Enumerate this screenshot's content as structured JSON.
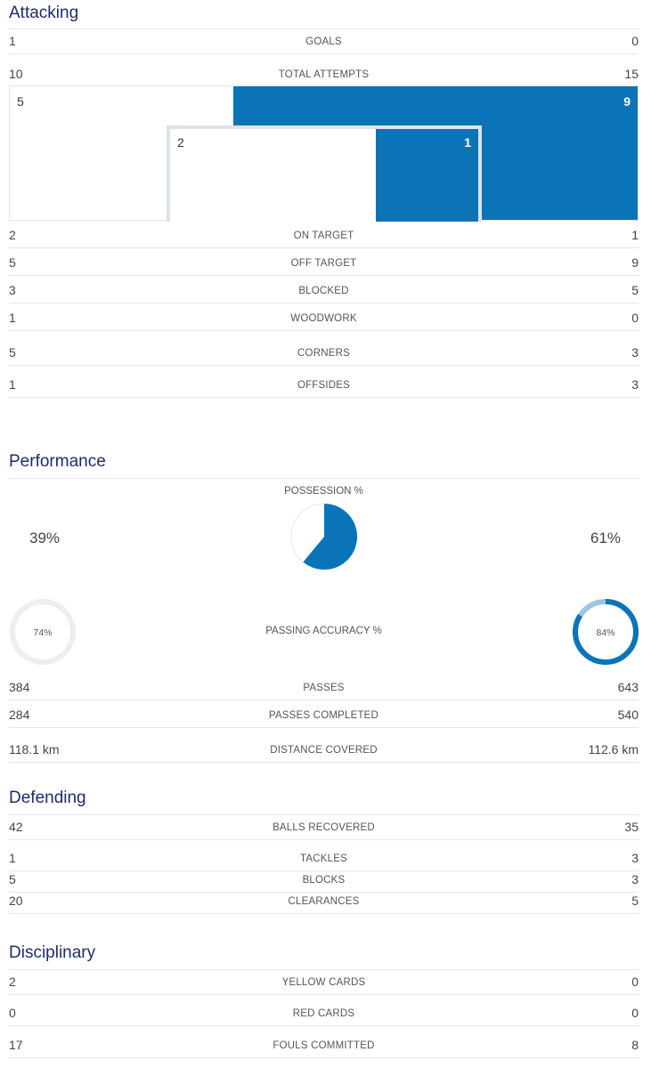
{
  "colors": {
    "title": "#1f2c6b",
    "accent": "#0b74b8",
    "accent_light": "#9fc4e2",
    "ring_track": "#eeeeee"
  },
  "attacking": {
    "title": "Attacking",
    "goals": {
      "label": "GOALS",
      "home": "1",
      "away": "0"
    },
    "total_attempts": {
      "label": "TOTAL ATTEMPTS",
      "home": "10",
      "away": "15"
    },
    "goal_frame": {
      "outer_home": "5",
      "outer_away": "9",
      "inner_home": "2",
      "inner_away": "1"
    },
    "rows": [
      {
        "label": "ON TARGET",
        "home": "2",
        "away": "1"
      },
      {
        "label": "OFF TARGET",
        "home": "5",
        "away": "9"
      },
      {
        "label": "BLOCKED",
        "home": "3",
        "away": "5"
      },
      {
        "label": "WOODWORK",
        "home": "1",
        "away": "0"
      },
      {
        "label": "CORNERS",
        "home": "5",
        "away": "3"
      },
      {
        "label": "OFFSIDES",
        "home": "1",
        "away": "3"
      }
    ]
  },
  "performance": {
    "title": "Performance",
    "possession": {
      "label": "POSSESSION %",
      "home": "39%",
      "away": "61%",
      "home_value": 39,
      "away_value": 61
    },
    "passing_accuracy": {
      "label": "PASSING ACCURACY %",
      "home": "74%",
      "away": "84%",
      "home_value": 74,
      "away_value": 84
    },
    "rows": [
      {
        "label": "PASSES",
        "home": "384",
        "away": "643"
      },
      {
        "label": "PASSES COMPLETED",
        "home": "284",
        "away": "540"
      },
      {
        "label": "DISTANCE COVERED",
        "home": "118.1 km",
        "away": "112.6 km"
      }
    ]
  },
  "defending": {
    "title": "Defending",
    "rows": [
      {
        "label": "BALLS RECOVERED",
        "home": "42",
        "away": "35"
      },
      {
        "label": "TACKLES",
        "home": "1",
        "away": "3"
      },
      {
        "label": "BLOCKS",
        "home": "5",
        "away": "3"
      },
      {
        "label": "CLEARANCES",
        "home": "20",
        "away": "5"
      }
    ]
  },
  "disciplinary": {
    "title": "Disciplinary",
    "rows": [
      {
        "label": "YELLOW CARDS",
        "home": "2",
        "away": "0"
      },
      {
        "label": "RED CARDS",
        "home": "0",
        "away": "0"
      },
      {
        "label": "FOULS COMMITTED",
        "home": "17",
        "away": "8"
      }
    ]
  }
}
